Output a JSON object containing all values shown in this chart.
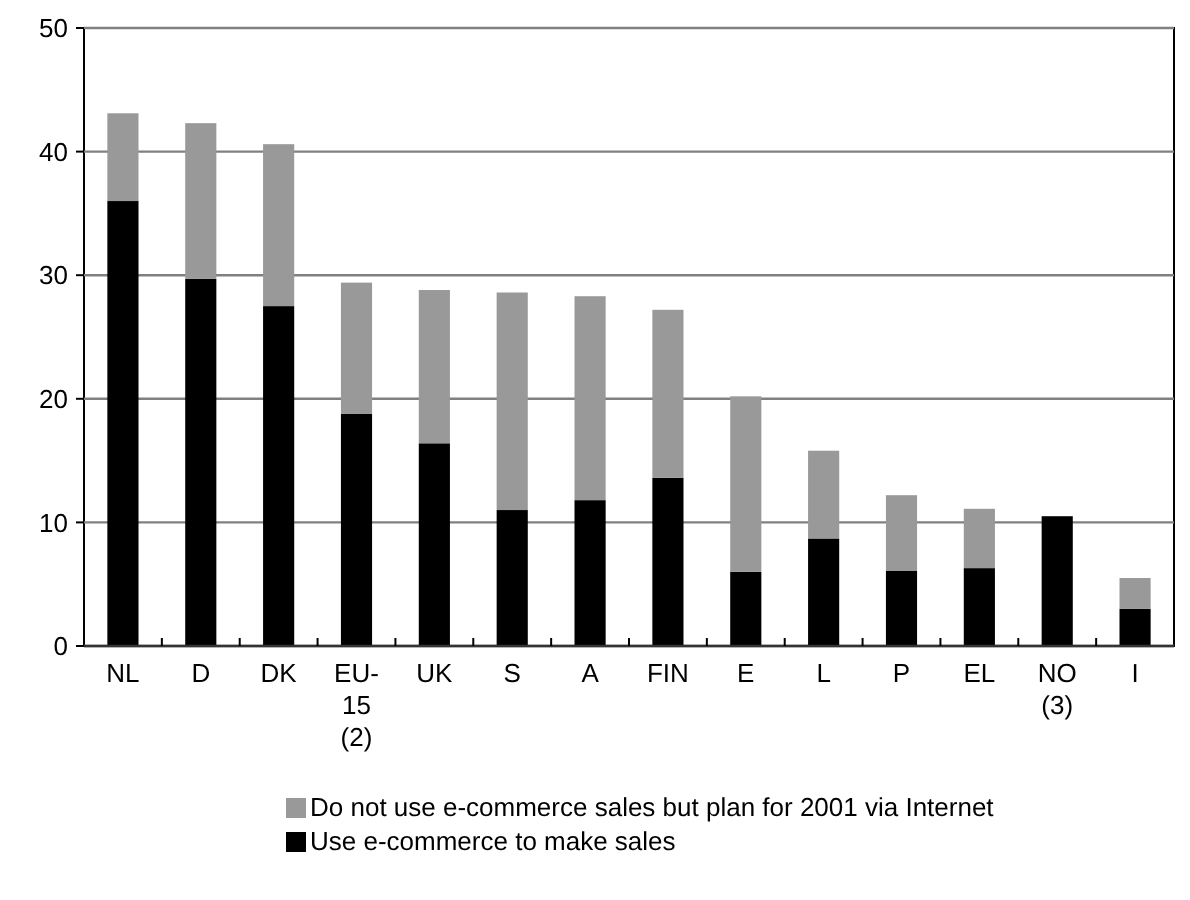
{
  "chart_data": {
    "type": "bar",
    "stacked": true,
    "categories": [
      "NL",
      "D",
      "DK",
      "EU-\n15\n(2)",
      "UK",
      "S",
      "A",
      "FIN",
      "E",
      "L",
      "P",
      "EL",
      "NO\n(3)",
      "I"
    ],
    "series": [
      {
        "name": "Use e-commerce to make sales",
        "color": "#000000",
        "values": [
          36,
          29.7,
          27.5,
          18.8,
          16.4,
          11,
          11.8,
          13.6,
          6,
          8.7,
          6.1,
          6.3,
          10.5,
          3
        ]
      },
      {
        "name": "Do not use e-commerce sales but plan for 2001 via Internet",
        "color": "#999999",
        "values": [
          7.1,
          12.6,
          13.1,
          10.6,
          12.4,
          17.6,
          16.5,
          13.6,
          14.2,
          7.1,
          6.1,
          4.8,
          null,
          2.5
        ]
      }
    ],
    "ylim": [
      0,
      50
    ],
    "yticks": [
      0,
      10,
      20,
      30,
      40,
      50
    ],
    "grid": "y",
    "legend": "bottom"
  }
}
